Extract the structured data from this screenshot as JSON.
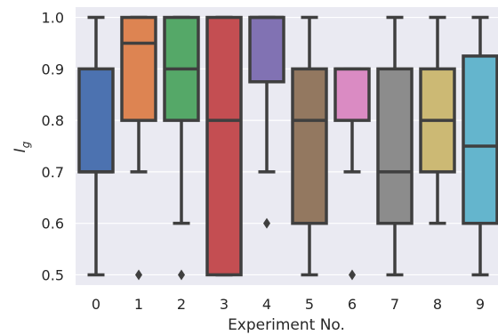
{
  "chart_data": {
    "type": "box",
    "title": "",
    "xlabel": "Experiment No.",
    "ylabel_main": "I",
    "ylabel_sub": "g",
    "ylim": [
      0.48,
      1.02
    ],
    "yticks": [
      0.5,
      0.6,
      0.7,
      0.8,
      0.9,
      1.0
    ],
    "ytick_labels": [
      "0.5",
      "0.6",
      "0.7",
      "0.8",
      "0.9",
      "1.0"
    ],
    "categories": [
      "0",
      "1",
      "2",
      "3",
      "4",
      "5",
      "6",
      "7",
      "8",
      "9"
    ],
    "colors": [
      "#4c72b0",
      "#dd8452",
      "#55a868",
      "#c44e52",
      "#8172b3",
      "#937860",
      "#da8bc3",
      "#8c8c8c",
      "#ccb974",
      "#64b5cd"
    ],
    "grid": true,
    "boxes": [
      {
        "q1": 0.7,
        "median": 0.7,
        "q3": 0.9,
        "whislo": 0.5,
        "whishi": 1.0,
        "fliers": []
      },
      {
        "q1": 0.8,
        "median": 0.95,
        "q3": 1.0,
        "whislo": 0.7,
        "whishi": 1.0,
        "fliers": [
          0.5
        ]
      },
      {
        "q1": 0.8,
        "median": 0.9,
        "q3": 1.0,
        "whislo": 0.6,
        "whishi": 1.0,
        "fliers": [
          0.5
        ]
      },
      {
        "q1": 0.5,
        "median": 0.8,
        "q3": 1.0,
        "whislo": 0.5,
        "whishi": 1.0,
        "fliers": []
      },
      {
        "q1": 0.875,
        "median": 1.0,
        "q3": 1.0,
        "whislo": 0.7,
        "whishi": 1.0,
        "fliers": [
          0.6
        ]
      },
      {
        "q1": 0.6,
        "median": 0.8,
        "q3": 0.9,
        "whislo": 0.5,
        "whishi": 1.0,
        "fliers": []
      },
      {
        "q1": 0.8,
        "median": 0.9,
        "q3": 0.9,
        "whislo": 0.7,
        "whishi": 0.9,
        "fliers": [
          0.5
        ]
      },
      {
        "q1": 0.6,
        "median": 0.7,
        "q3": 0.9,
        "whislo": 0.5,
        "whishi": 1.0,
        "fliers": []
      },
      {
        "q1": 0.7,
        "median": 0.8,
        "q3": 0.9,
        "whislo": 0.6,
        "whishi": 1.0,
        "fliers": []
      },
      {
        "q1": 0.6,
        "median": 0.75,
        "q3": 0.925,
        "whislo": 0.5,
        "whishi": 1.0,
        "fliers": []
      }
    ]
  }
}
